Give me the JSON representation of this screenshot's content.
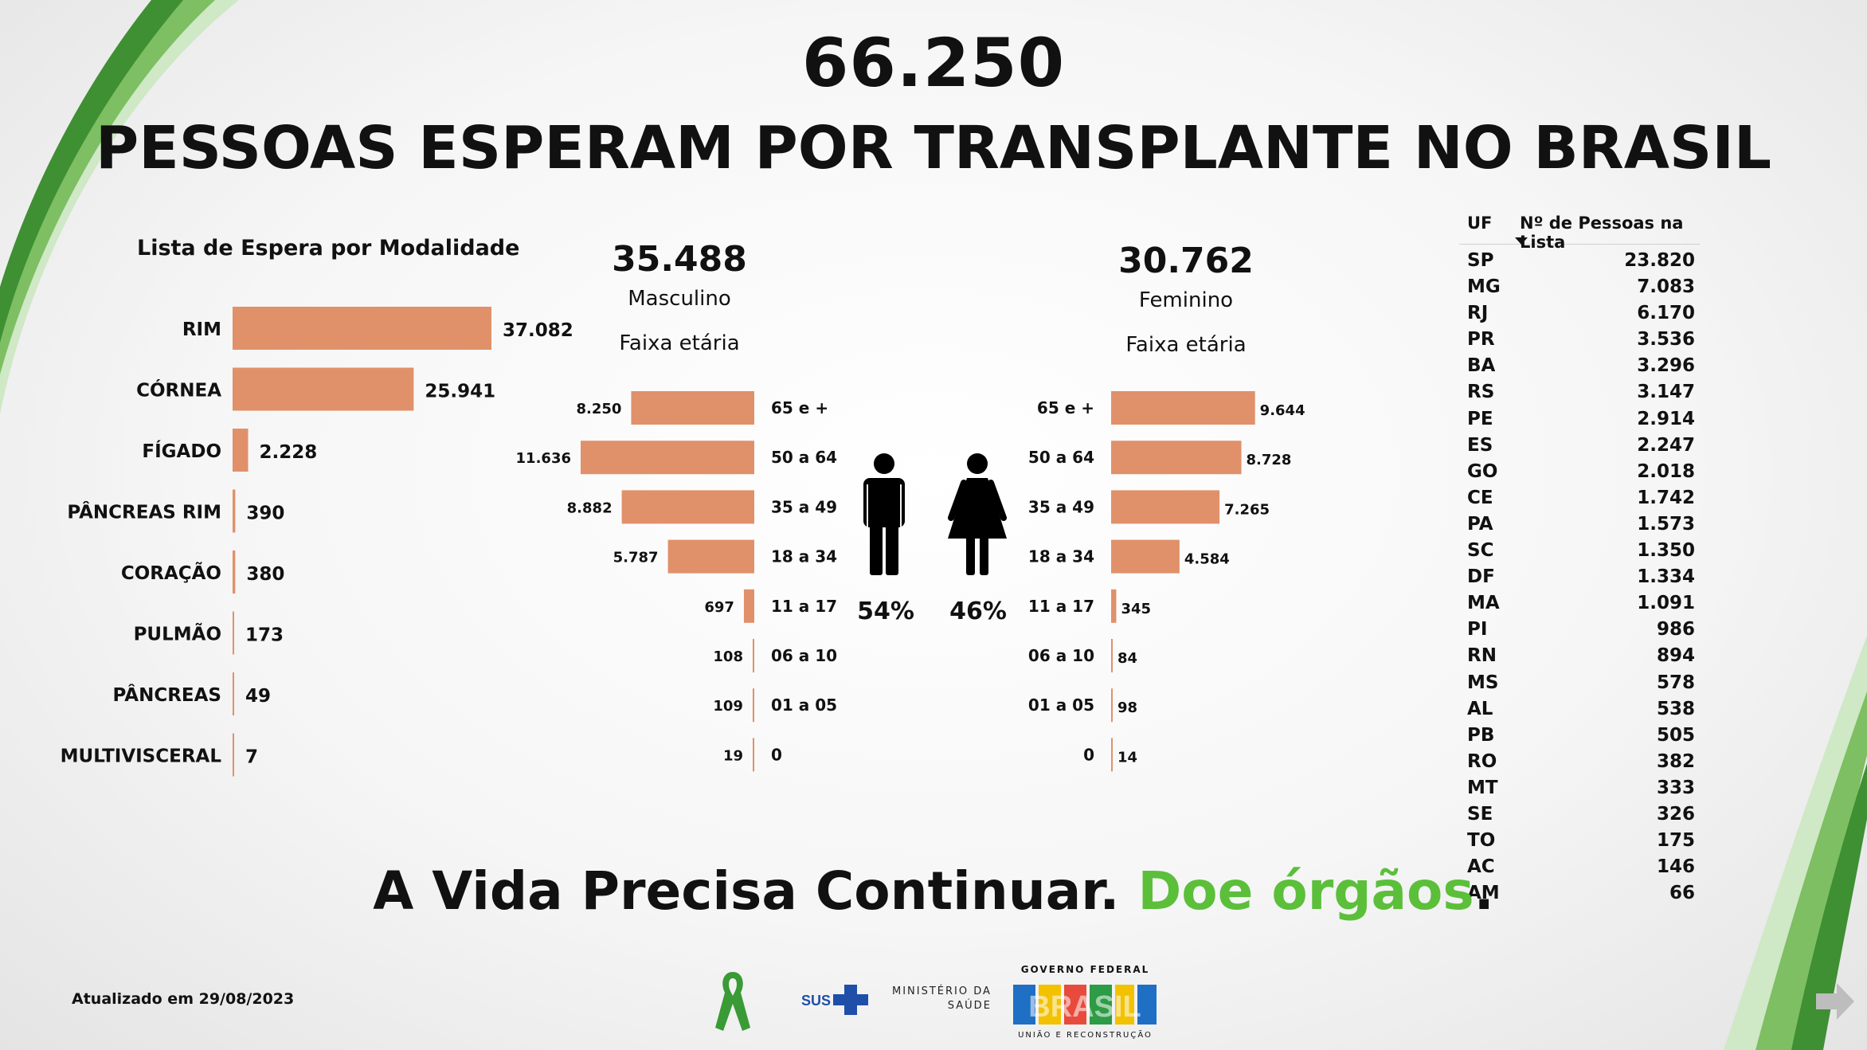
{
  "header": {
    "total": "66.250",
    "headline": "PESSOAS ESPERAM POR TRANSPLANTE NO BRASIL"
  },
  "modalidade": {
    "title": "Lista de Espera por Modalidade"
  },
  "male": {
    "total": "35.488",
    "label": "Masculino",
    "faixa_label": "Faixa etária",
    "percent": "54%"
  },
  "female": {
    "total": "30.762",
    "label": "Feminino",
    "faixa_label": "Faixa etária",
    "percent": "46%"
  },
  "uf_table": {
    "col_uf": "UF",
    "col_count": "Nº de Pessoas na Lista",
    "rows": [
      {
        "uf": "SP",
        "count": "23.820"
      },
      {
        "uf": "MG",
        "count": "7.083"
      },
      {
        "uf": "RJ",
        "count": "6.170"
      },
      {
        "uf": "PR",
        "count": "3.536"
      },
      {
        "uf": "BA",
        "count": "3.296"
      },
      {
        "uf": "RS",
        "count": "3.147"
      },
      {
        "uf": "PE",
        "count": "2.914"
      },
      {
        "uf": "ES",
        "count": "2.247"
      },
      {
        "uf": "GO",
        "count": "2.018"
      },
      {
        "uf": "CE",
        "count": "1.742"
      },
      {
        "uf": "PA",
        "count": "1.573"
      },
      {
        "uf": "SC",
        "count": "1.350"
      },
      {
        "uf": "DF",
        "count": "1.334"
      },
      {
        "uf": "MA",
        "count": "1.091"
      },
      {
        "uf": "PI",
        "count": "986"
      },
      {
        "uf": "RN",
        "count": "894"
      },
      {
        "uf": "MS",
        "count": "578"
      },
      {
        "uf": "AL",
        "count": "538"
      },
      {
        "uf": "PB",
        "count": "505"
      },
      {
        "uf": "RO",
        "count": "382"
      },
      {
        "uf": "MT",
        "count": "333"
      },
      {
        "uf": "SE",
        "count": "326"
      },
      {
        "uf": "TO",
        "count": "175"
      },
      {
        "uf": "AC",
        "count": "146"
      },
      {
        "uf": "AM",
        "count": "66"
      }
    ]
  },
  "slogan": {
    "part1": "A Vida Precisa Continuar. ",
    "part2": "Doe órgãos",
    "part3": "."
  },
  "footer": {
    "updated": "Atualizado em 29/08/2023",
    "sus": "SUS",
    "ministerio_line1": "MINISTÉRIO DA",
    "ministerio_line2": "SAÚDE",
    "gov_top": "GOVERNO FEDERAL",
    "gov_brasil": "BRASIL",
    "gov_bottom": "UNIÃO E RECONSTRUÇÃO"
  },
  "colors": {
    "bar": "#e0916a",
    "green": "#5bbf3a",
    "text": "#111111"
  },
  "icons": [
    "green-ribbon-icon",
    "male-person-icon",
    "female-person-icon",
    "next-arrow-icon"
  ],
  "chart_data": [
    {
      "type": "bar",
      "orientation": "horizontal",
      "title": "Lista de Espera por Modalidade",
      "categories": [
        "RIM",
        "CÓRNEA",
        "FÍGADO",
        "PÂNCREAS RIM",
        "CORAÇÃO",
        "PULMÃO",
        "PÂNCREAS",
        "MULTIVISCERAL"
      ],
      "values": [
        37082,
        25941,
        2228,
        390,
        380,
        173,
        49,
        7
      ],
      "value_labels": [
        "37.082",
        "25.941",
        "2.228",
        "390",
        "380",
        "173",
        "49",
        "7"
      ],
      "xlim": [
        0,
        37082
      ]
    },
    {
      "type": "bar",
      "orientation": "horizontal",
      "title": "Masculino",
      "categories": [
        "65 e +",
        "50 a 64",
        "35 a 49",
        "18 a 34",
        "11 a 17",
        "06 a 10",
        "01 a 05",
        "0"
      ],
      "values": [
        8250,
        11636,
        8882,
        5787,
        697,
        108,
        109,
        19
      ],
      "value_labels": [
        "8.250",
        "11.636",
        "8.882",
        "5.787",
        "697",
        "108",
        "109",
        "19"
      ],
      "xlim": [
        0,
        11636
      ]
    },
    {
      "type": "bar",
      "orientation": "horizontal",
      "title": "Feminino",
      "categories": [
        "65 e +",
        "50 a 64",
        "35 a 49",
        "18 a 34",
        "11 a 17",
        "06 a 10",
        "01 a 05",
        "0"
      ],
      "values": [
        9644,
        8728,
        7265,
        4584,
        345,
        84,
        98,
        14
      ],
      "value_labels": [
        "9.644",
        "8.728",
        "7.265",
        "4.584",
        "345",
        "84",
        "98",
        "14"
      ],
      "xlim": [
        0,
        11636
      ]
    }
  ]
}
